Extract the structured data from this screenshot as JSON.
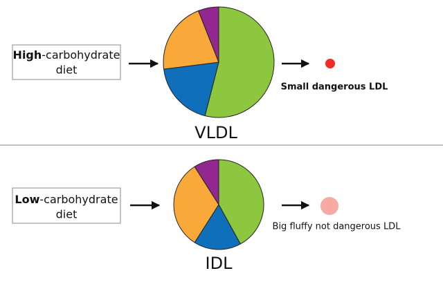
{
  "panels": [
    {
      "bold": "High",
      "rest": "-carbohydrate",
      "line2": "diet",
      "pie_label": "VLDL",
      "result": "Small dangerous LDL",
      "particle_color": "#ee2d24",
      "pie": {
        "type": "pie",
        "values": [
          54,
          19,
          21,
          6
        ],
        "colors": [
          "#8dc63f",
          "#0f6fba",
          "#f9a93a",
          "#92278f"
        ]
      }
    },
    {
      "bold": "Low",
      "rest": "-carbohydrate",
      "line2": "diet",
      "pie_label": "IDL",
      "result": "Big fluffy not dangerous LDL",
      "particle_color": "#f7aaa4",
      "pie": {
        "type": "pie",
        "values": [
          42,
          17,
          32,
          9
        ],
        "colors": [
          "#8dc63f",
          "#0f6fba",
          "#f9a93a",
          "#92278f"
        ]
      }
    }
  ]
}
